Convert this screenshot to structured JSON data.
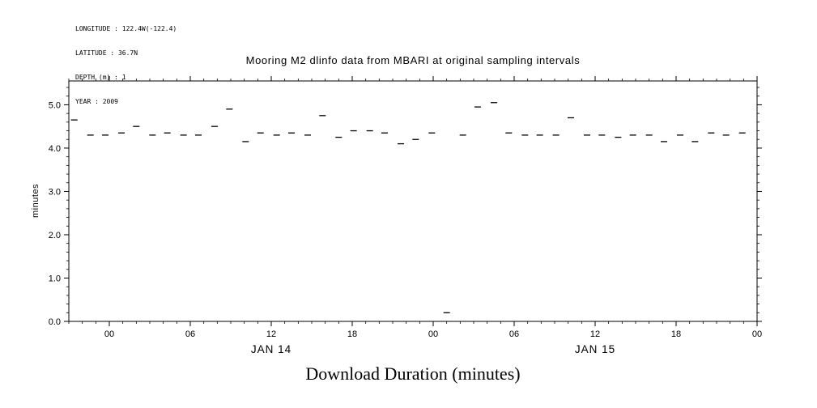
{
  "meta": {
    "lines": [
      "LONGITUDE : 122.4W(-122.4)",
      "LATITUDE : 36.7N",
      "DEPTH (m) : 1",
      "YEAR : 2009"
    ]
  },
  "title": "Mooring M2 dlinfo data from MBARI at original sampling intervals",
  "xlabel": "Download Duration (minutes)",
  "ylabel": "minutes",
  "colors": {
    "foreground": "#000000",
    "background": "#ffffff"
  },
  "chart_data": {
    "type": "scatter",
    "marker": "horizontal-dash",
    "title": "Mooring M2 dlinfo data from MBARI at original sampling intervals",
    "xlabel": "Download Duration (minutes)",
    "ylabel": "minutes",
    "x_unit": "hours since JAN 14 00:00, year 2009",
    "x_range": [
      -3,
      48
    ],
    "y_range": [
      0,
      5.55
    ],
    "grid": false,
    "legend": "none",
    "y_ticks": [
      {
        "v": 0,
        "label": "0.0"
      },
      {
        "v": 1,
        "label": "1.0"
      },
      {
        "v": 2,
        "label": "2.0"
      },
      {
        "v": 3,
        "label": "3.0"
      },
      {
        "v": 4,
        "label": "4.0"
      },
      {
        "v": 5,
        "label": "5.0"
      }
    ],
    "x_ticks": [
      {
        "t": 0,
        "label": "00"
      },
      {
        "t": 6,
        "label": "06"
      },
      {
        "t": 12,
        "label": "12"
      },
      {
        "t": 18,
        "label": "18"
      },
      {
        "t": 24,
        "label": "00"
      },
      {
        "t": 30,
        "label": "06"
      },
      {
        "t": 36,
        "label": "12"
      },
      {
        "t": 42,
        "label": "18"
      },
      {
        "t": 48,
        "label": "00"
      }
    ],
    "date_labels": [
      {
        "t": 12,
        "label": "JAN 14"
      },
      {
        "t": 36,
        "label": "JAN 15"
      }
    ],
    "points": [
      [
        -2.6,
        4.65
      ],
      [
        -1.4,
        4.3
      ],
      [
        -0.3,
        4.3
      ],
      [
        0.9,
        4.35
      ],
      [
        2.0,
        4.5
      ],
      [
        3.2,
        4.3
      ],
      [
        4.3,
        4.35
      ],
      [
        5.5,
        4.3
      ],
      [
        6.6,
        4.3
      ],
      [
        7.8,
        4.5
      ],
      [
        8.9,
        4.9
      ],
      [
        10.1,
        4.15
      ],
      [
        11.2,
        4.35
      ],
      [
        12.4,
        4.3
      ],
      [
        13.5,
        4.35
      ],
      [
        14.7,
        4.3
      ],
      [
        15.8,
        4.75
      ],
      [
        17.0,
        4.25
      ],
      [
        18.1,
        4.4
      ],
      [
        19.3,
        4.4
      ],
      [
        20.4,
        4.35
      ],
      [
        21.6,
        4.1
      ],
      [
        22.7,
        4.2
      ],
      [
        23.9,
        4.35
      ],
      [
        25.0,
        0.2
      ],
      [
        26.2,
        4.3
      ],
      [
        27.3,
        4.95
      ],
      [
        28.5,
        5.05
      ],
      [
        29.6,
        4.35
      ],
      [
        30.8,
        4.3
      ],
      [
        31.9,
        4.3
      ],
      [
        33.1,
        4.3
      ],
      [
        34.2,
        4.7
      ],
      [
        35.4,
        4.3
      ],
      [
        36.5,
        4.3
      ],
      [
        37.7,
        4.25
      ],
      [
        38.8,
        4.3
      ],
      [
        40.0,
        4.3
      ],
      [
        41.1,
        4.15
      ],
      [
        42.3,
        4.3
      ],
      [
        43.4,
        4.15
      ],
      [
        44.6,
        4.35
      ],
      [
        45.7,
        4.3
      ],
      [
        46.9,
        4.35
      ]
    ]
  }
}
